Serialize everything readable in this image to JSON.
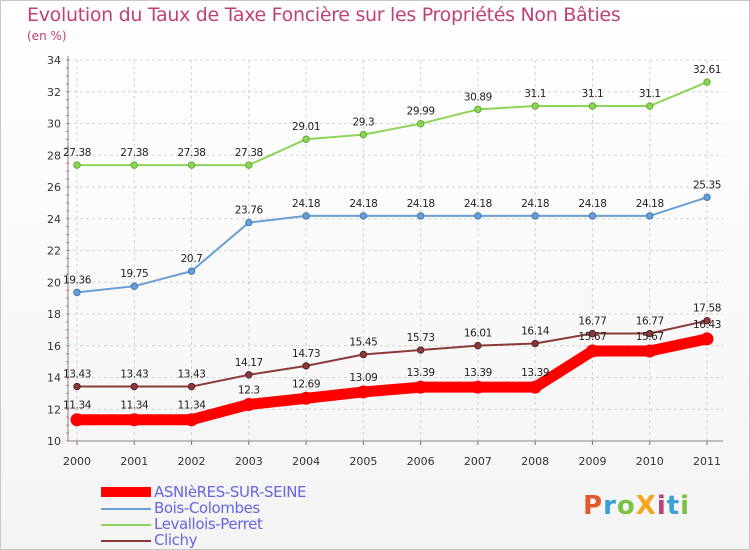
{
  "title": "Evolution du Taux de Taxe Foncière sur les Propriétés Non Bâties",
  "unit_label": "(en %)",
  "logo": {
    "text": "ProXiti",
    "colors": [
      "#e05a2b",
      "#3aa0d8",
      "#7cc242",
      "#f3a61f",
      "#c0407a",
      "#3aa0d8",
      "#7cc242"
    ]
  },
  "chart_data": {
    "type": "line",
    "title": "Evolution du Taux de Taxe Foncière sur les Propriétés Non Bâties",
    "ylabel": "(en %)",
    "xlabel": "",
    "x": [
      "2000",
      "2001",
      "2002",
      "2003",
      "2004",
      "2005",
      "2006",
      "2007",
      "2008",
      "2009",
      "2010",
      "2011"
    ],
    "ylim": [
      10,
      34
    ],
    "yticks": [
      "10",
      "12",
      "14",
      "16",
      "18",
      "20",
      "22",
      "24",
      "26",
      "28",
      "30",
      "32",
      "34"
    ],
    "grid": true,
    "legend_position": "bottom-left",
    "series": [
      {
        "name": "ASNIèRES-SUR-SEINE",
        "color": "#ff0000",
        "thick": true,
        "values": [
          11.34,
          11.34,
          11.34,
          12.3,
          12.69,
          13.09,
          13.39,
          13.39,
          13.39,
          15.67,
          15.67,
          16.43
        ],
        "labels": [
          "11.34",
          "11.34",
          "11.34",
          "12.3",
          "12.69",
          "13.09",
          "13.39",
          "13.39",
          "13.39",
          "15.67",
          "15.67",
          "16.43"
        ]
      },
      {
        "name": "Bois-Colombes",
        "color": "#6b9fd4",
        "thick": false,
        "values": [
          19.36,
          19.75,
          20.7,
          23.76,
          24.18,
          24.18,
          24.18,
          24.18,
          24.18,
          24.18,
          24.18,
          25.35
        ],
        "labels": [
          "19.36",
          "19.75",
          "20.7",
          "23.76",
          "24.18",
          "24.18",
          "24.18",
          "24.18",
          "24.18",
          "24.18",
          "24.18",
          "25.35"
        ]
      },
      {
        "name": "Levallois-Perret",
        "color": "#8ed45a",
        "thick": false,
        "values": [
          27.38,
          27.38,
          27.38,
          27.38,
          29.01,
          29.3,
          29.99,
          30.89,
          31.1,
          31.1,
          31.1,
          32.61
        ],
        "labels": [
          "27.38",
          "27.38",
          "27.38",
          "27.38",
          "29.01",
          "29.3",
          "29.99",
          "30.89",
          "31.1",
          "31.1",
          "31.1",
          "32.61"
        ]
      },
      {
        "name": "Clichy",
        "color": "#8b3a3a",
        "thick": false,
        "values": [
          13.43,
          13.43,
          13.43,
          14.17,
          14.73,
          15.45,
          15.73,
          16.01,
          16.14,
          16.77,
          16.77,
          17.58
        ],
        "labels": [
          "13.43",
          "13.43",
          "13.43",
          "14.17",
          "14.73",
          "15.45",
          "15.73",
          "16.01",
          "16.14",
          "16.77",
          "16.77",
          "17.58"
        ]
      }
    ]
  }
}
